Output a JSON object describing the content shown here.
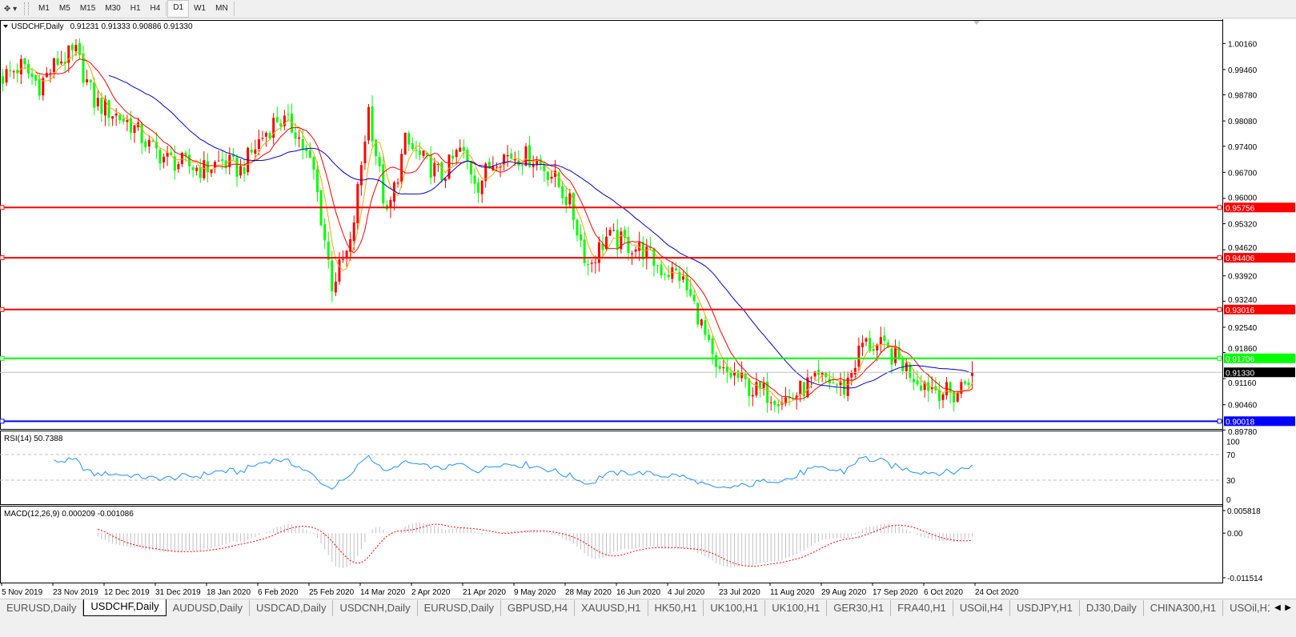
{
  "toolbar": {
    "tool_icon": "crosshair-arrow-icon",
    "timeframes": [
      "M1",
      "M5",
      "M15",
      "M30",
      "H1",
      "H4",
      "D1",
      "W1",
      "MN"
    ],
    "active_timeframe": "D1"
  },
  "chart_header": {
    "label": "USDCHF,Daily",
    "ohlc": "0.91231 0.91333 0.90886 0.91330"
  },
  "colors": {
    "background": "#ffffff",
    "bull_candle": "#ff0000",
    "bear_candle": "#00ff00",
    "ma_fast": "#ffa500",
    "ma_mid": "#ff0000",
    "ma_slow": "#0000cd",
    "rsi_line": "#1e90ff",
    "macd_signal": "#ff0000",
    "macd_hist": "#c0c0c0"
  },
  "chart_data": {
    "type": "candlestick",
    "symbol": "USDCHF",
    "timeframe": "Daily",
    "ylim": [
      0.8981,
      1.0079
    ],
    "weekly_closes": [
      0.9927,
      0.9955,
      0.9905,
      0.9968,
      0.999,
      0.986,
      0.983,
      0.98,
      0.974,
      0.9705,
      0.969,
      0.9678,
      0.97,
      0.9675,
      0.9753,
      0.9815,
      0.9785,
      0.967,
      0.937,
      0.947,
      0.984,
      0.9546,
      0.975,
      0.97,
      0.966,
      0.973,
      0.964,
      0.9715,
      0.9715,
      0.971,
      0.9665,
      0.9585,
      0.942,
      0.9495,
      0.948,
      0.946,
      0.941,
      0.9394,
      0.929,
      0.913,
      0.9125,
      0.9085,
      0.9075,
      0.906,
      0.91,
      0.9115,
      0.9089,
      0.921,
      0.92,
      0.9165,
      0.9115,
      0.909,
      0.907,
      0.9133
    ],
    "last_bar": {
      "open": 0.91231,
      "high": 0.91333,
      "low": 0.90886,
      "close": 0.9133
    },
    "y_ticks": [
      "1.00160",
      "0.99460",
      "0.98780",
      "0.98080",
      "0.97400",
      "0.96700",
      "0.96000",
      "0.95320",
      "0.94620",
      "0.93920",
      "0.93240",
      "0.92540",
      "0.91860",
      "0.91160",
      "0.90460",
      "0.89780"
    ],
    "x_ticks": [
      "5 Nov 2019",
      "23 Nov 2019",
      "12 Dec 2019",
      "31 Dec 2019",
      "18 Jan 2020",
      "6 Feb 2020",
      "25 Feb 2020",
      "14 Mar 2020",
      "2 Apr 2020",
      "21 Apr 2020",
      "9 May 2020",
      "28 May 2020",
      "16 Jun 2020",
      "4 Jul 2020",
      "23 Jul 2020",
      "11 Aug 2020",
      "29 Aug 2020",
      "17 Sep 2020",
      "6 Oct 2020",
      "24 Oct 2020"
    ],
    "horizontal_lines": [
      {
        "price": 0.95756,
        "label": "0.95756",
        "color": "#ff0000"
      },
      {
        "price": 0.94406,
        "label": "0.94406",
        "color": "#ff0000"
      },
      {
        "price": 0.93016,
        "label": "0.93016",
        "color": "#ff0000"
      },
      {
        "price": 0.91706,
        "label": "0.91706",
        "color": "#00ff00"
      },
      {
        "price": 0.90018,
        "label": "0.90018",
        "color": "#0000ff"
      }
    ],
    "current_price": {
      "price": 0.9133,
      "label": "0.91330"
    },
    "moving_averages": [
      5,
      10,
      30
    ],
    "grid": false
  },
  "rsi": {
    "label": "RSI(14) 50.7388",
    "period": 14,
    "levels": [
      70,
      30
    ],
    "axis_labels": [
      "100",
      "70",
      "30",
      "0"
    ]
  },
  "macd": {
    "label": "MACD(12,26,9) 0.000209 -0.001086",
    "axis_labels": [
      "0.005818",
      "0.00",
      "-0.011514"
    ],
    "ylim": [
      -0.011514,
      0.005818
    ]
  },
  "tabs": [
    "EURUSD,Daily",
    "USDCHF,Daily",
    "AUDUSD,Daily",
    "USDCAD,Daily",
    "USDCNH,Daily",
    "EURUSD,Daily",
    "GBPUSD,H4",
    "XAUUSD,H1",
    "HK50,H1",
    "UK100,H1",
    "UK100,H1",
    "GER30,H1",
    "FRA40,H1",
    "USOil,H4",
    "USDJPY,H1",
    "DJ30,Daily",
    "CHINA300,H1",
    "USOil,H1"
  ],
  "active_tab": "USDCHF,Daily"
}
